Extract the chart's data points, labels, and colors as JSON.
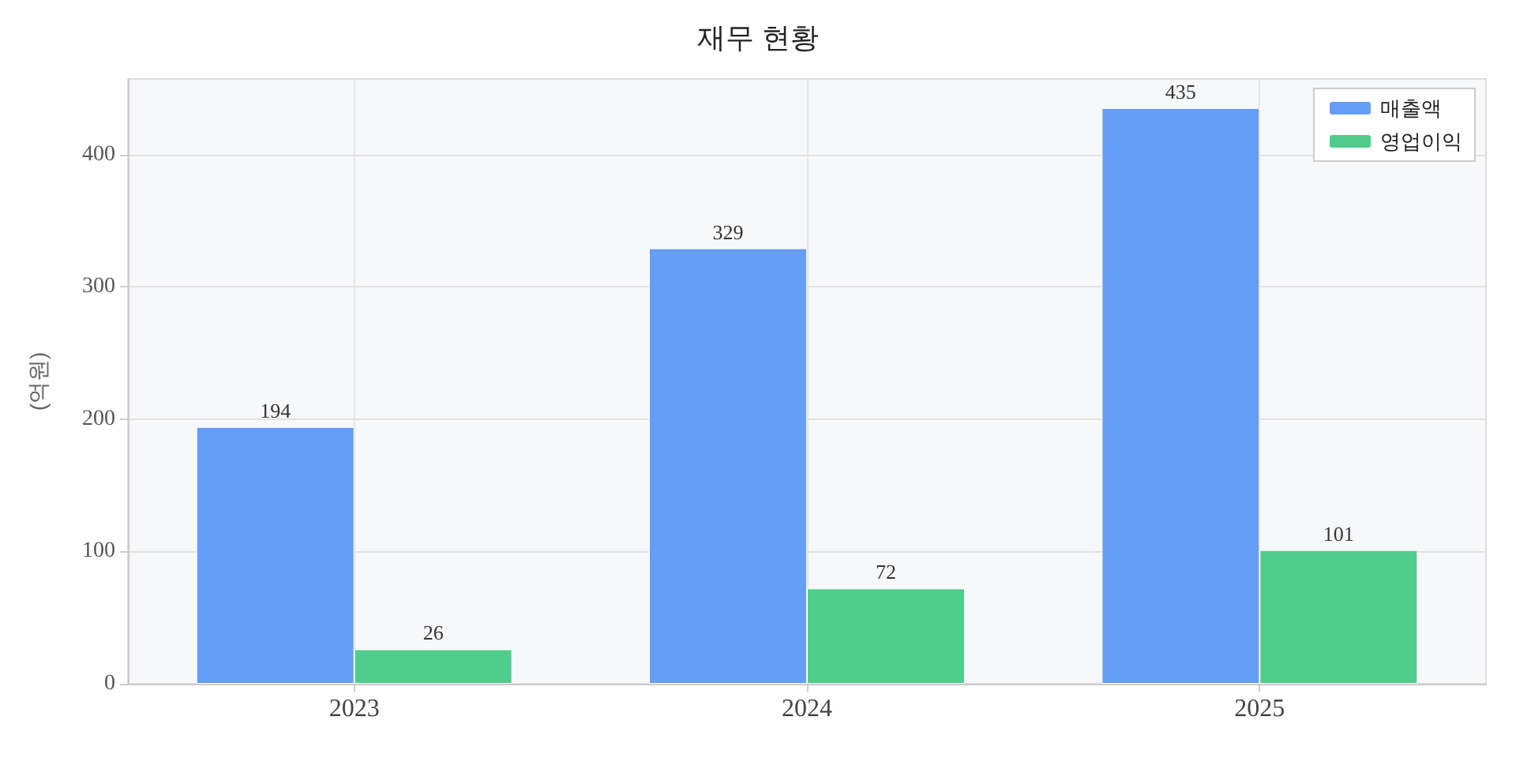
{
  "chart_data": {
    "type": "bar",
    "title": "재무 현황",
    "ylabel": "(억원)",
    "categories": [
      "2023",
      "2024",
      "2025"
    ],
    "series": [
      {
        "name": "매출액",
        "color": "#669df6",
        "values": [
          194,
          329,
          435
        ]
      },
      {
        "name": "영업이익",
        "color": "#50cd8c",
        "values": [
          26,
          72,
          101
        ]
      }
    ],
    "ylim": [
      0,
      457
    ],
    "yticks": [
      0,
      100,
      200,
      300,
      400
    ],
    "grid": true,
    "legend": "top right",
    "data_labels": true
  }
}
